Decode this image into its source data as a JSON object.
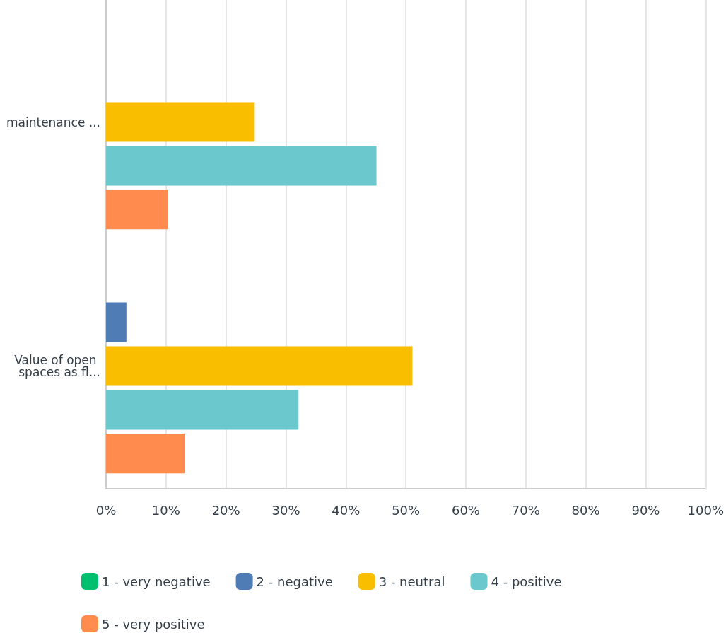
{
  "chart_data": {
    "type": "bar",
    "orientation": "horizontal",
    "categories": [
      "maintenance ...",
      "Value of open spaces as fl..."
    ],
    "series": [
      {
        "name": "1 - very negative",
        "color": "#00bf6f",
        "values": [
          null,
          0
        ]
      },
      {
        "name": "2 - negative",
        "color": "#507cb6",
        "values": [
          null,
          3.4
        ]
      },
      {
        "name": "3 - neutral",
        "color": "#f9be00",
        "values": [
          24.8,
          51.1
        ]
      },
      {
        "name": "4 - positive",
        "color": "#6bc8cd",
        "values": [
          45.1,
          32.1
        ]
      },
      {
        "name": "5 - very positive",
        "color": "#ff8b4f",
        "values": [
          10.3,
          13.1
        ]
      }
    ],
    "xlim": [
      0,
      100
    ],
    "xticks": [
      {
        "value": 0,
        "label": "0%"
      },
      {
        "value": 10,
        "label": "10%"
      },
      {
        "value": 20,
        "label": "20%"
      },
      {
        "value": 30,
        "label": "30%"
      },
      {
        "value": 40,
        "label": "40%"
      },
      {
        "value": 50,
        "label": "50%"
      },
      {
        "value": 60,
        "label": "60%"
      },
      {
        "value": 70,
        "label": "70%"
      },
      {
        "value": 80,
        "label": "80%"
      },
      {
        "value": 90,
        "label": "90%"
      },
      {
        "value": 100,
        "label": "100%"
      }
    ],
    "grid": "x",
    "legend": "bottom"
  }
}
